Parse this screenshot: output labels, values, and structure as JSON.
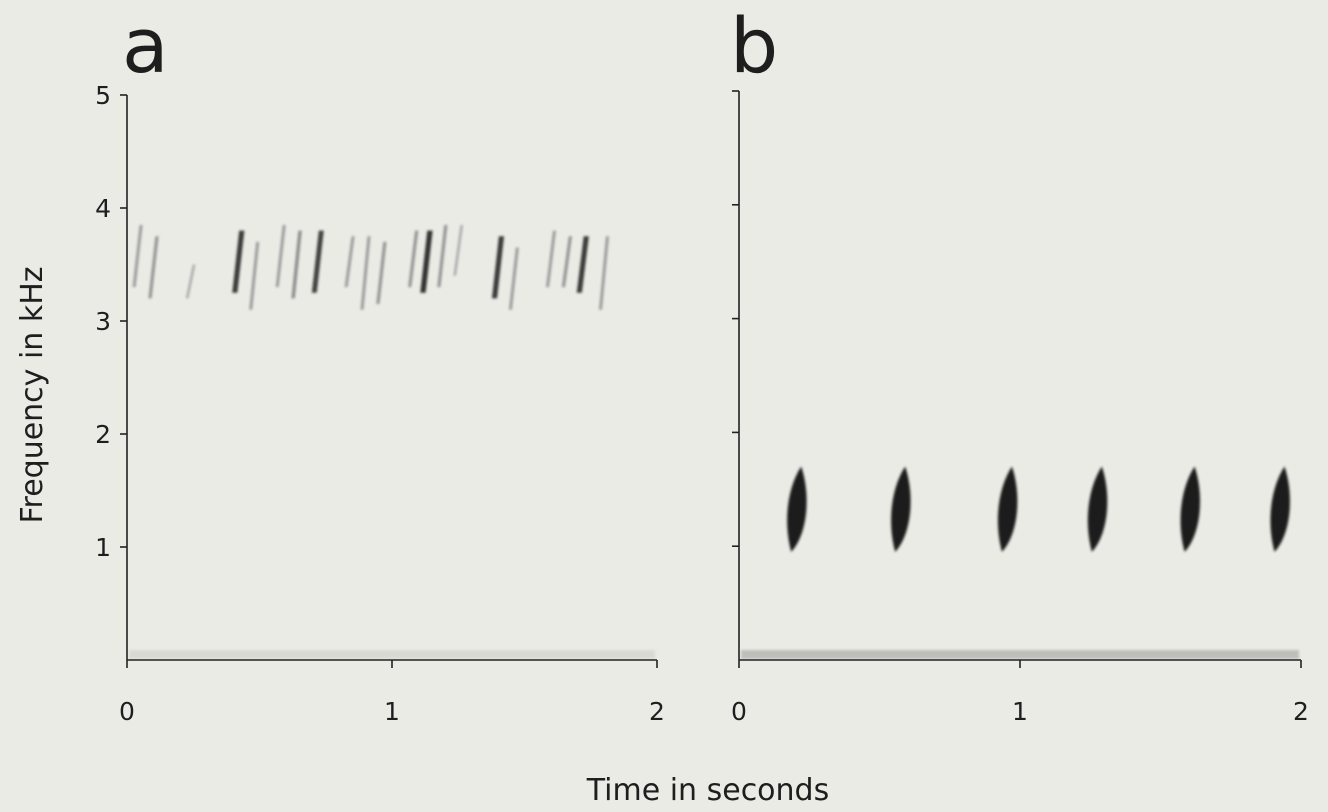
{
  "figure": {
    "ylabel": "Frequency in kHz",
    "xlabel": "Time in seconds"
  },
  "chart_data": [
    {
      "type": "spectrogram",
      "panel_label": "a",
      "xlim": [
        0,
        2
      ],
      "ylim": [
        0,
        5
      ],
      "x_ticks": [
        0,
        1,
        2
      ],
      "y_ticks": [
        1,
        2,
        3,
        4,
        5
      ],
      "x_tick_labels": [
        "0",
        "1",
        "2"
      ],
      "y_tick_labels": [
        "1",
        "2",
        "3",
        "4",
        "5"
      ],
      "note_freq_range_khz": [
        3.1,
        3.9
      ],
      "notes": [
        {
          "t": 0.04,
          "f_lo": 3.3,
          "f_hi": 3.85,
          "intensity": 0.3
        },
        {
          "t": 0.1,
          "f_lo": 3.2,
          "f_hi": 3.75,
          "intensity": 0.35
        },
        {
          "t": 0.24,
          "f_lo": 3.2,
          "f_hi": 3.5,
          "intensity": 0.2
        },
        {
          "t": 0.42,
          "f_lo": 3.25,
          "f_hi": 3.8,
          "intensity": 0.9
        },
        {
          "t": 0.48,
          "f_lo": 3.1,
          "f_hi": 3.7,
          "intensity": 0.3
        },
        {
          "t": 0.58,
          "f_lo": 3.3,
          "f_hi": 3.85,
          "intensity": 0.3
        },
        {
          "t": 0.64,
          "f_lo": 3.2,
          "f_hi": 3.8,
          "intensity": 0.4
        },
        {
          "t": 0.72,
          "f_lo": 3.25,
          "f_hi": 3.8,
          "intensity": 0.85
        },
        {
          "t": 0.84,
          "f_lo": 3.3,
          "f_hi": 3.75,
          "intensity": 0.3
        },
        {
          "t": 0.9,
          "f_lo": 3.1,
          "f_hi": 3.75,
          "intensity": 0.3
        },
        {
          "t": 0.96,
          "f_lo": 3.15,
          "f_hi": 3.7,
          "intensity": 0.35
        },
        {
          "t": 1.08,
          "f_lo": 3.3,
          "f_hi": 3.8,
          "intensity": 0.35
        },
        {
          "t": 1.13,
          "f_lo": 3.25,
          "f_hi": 3.8,
          "intensity": 0.95
        },
        {
          "t": 1.19,
          "f_lo": 3.3,
          "f_hi": 3.85,
          "intensity": 0.35
        },
        {
          "t": 1.25,
          "f_lo": 3.4,
          "f_hi": 3.85,
          "intensity": 0.2
        },
        {
          "t": 1.4,
          "f_lo": 3.2,
          "f_hi": 3.75,
          "intensity": 0.9
        },
        {
          "t": 1.46,
          "f_lo": 3.1,
          "f_hi": 3.65,
          "intensity": 0.3
        },
        {
          "t": 1.6,
          "f_lo": 3.3,
          "f_hi": 3.8,
          "intensity": 0.3
        },
        {
          "t": 1.66,
          "f_lo": 3.3,
          "f_hi": 3.75,
          "intensity": 0.35
        },
        {
          "t": 1.72,
          "f_lo": 3.25,
          "f_hi": 3.75,
          "intensity": 0.9
        },
        {
          "t": 1.8,
          "f_lo": 3.1,
          "f_hi": 3.75,
          "intensity": 0.3
        }
      ]
    },
    {
      "type": "spectrogram",
      "panel_label": "b",
      "xlim": [
        0,
        2
      ],
      "ylim": [
        0,
        5
      ],
      "x_ticks": [
        0,
        1,
        2
      ],
      "y_ticks": [
        1,
        2,
        3,
        4,
        5
      ],
      "x_tick_labels": [
        "0",
        "1",
        "2"
      ],
      "y_tick_labels": [],
      "note_freq_range_khz": [
        0.95,
        1.7
      ],
      "notes": [
        {
          "t": 0.2,
          "f_lo": 0.95,
          "f_hi": 1.7,
          "intensity": 1.0
        },
        {
          "t": 0.57,
          "f_lo": 0.95,
          "f_hi": 1.7,
          "intensity": 1.0
        },
        {
          "t": 0.95,
          "f_lo": 0.95,
          "f_hi": 1.7,
          "intensity": 1.0
        },
        {
          "t": 1.27,
          "f_lo": 0.95,
          "f_hi": 1.7,
          "intensity": 1.0
        },
        {
          "t": 1.6,
          "f_lo": 0.95,
          "f_hi": 1.7,
          "intensity": 1.0
        },
        {
          "t": 1.92,
          "f_lo": 0.95,
          "f_hi": 1.7,
          "intensity": 1.0
        }
      ]
    }
  ]
}
